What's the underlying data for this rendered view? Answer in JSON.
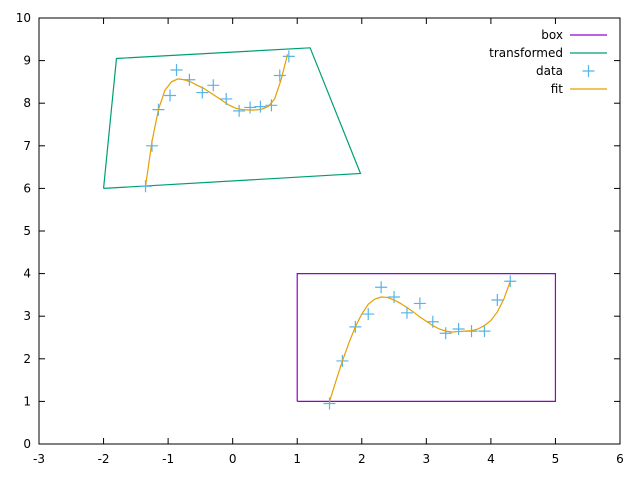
{
  "chart_data": {
    "type": "line",
    "title": "",
    "xlabel": "",
    "ylabel": "",
    "xlim": [
      -3,
      6
    ],
    "ylim": [
      0,
      10
    ],
    "xticks": [
      -3,
      -2,
      -1,
      0,
      1,
      2,
      3,
      4,
      5,
      6
    ],
    "yticks": [
      0,
      1,
      2,
      3,
      4,
      5,
      6,
      7,
      8,
      9,
      10
    ],
    "grid": false,
    "legend_position": "top-right",
    "series": [
      {
        "name": "box",
        "kind": "line",
        "color": "#9400d3",
        "x": [
          1,
          5,
          5,
          1,
          1
        ],
        "y": [
          1,
          1,
          4,
          4,
          1
        ]
      },
      {
        "name": "transformed",
        "kind": "line",
        "color": "#009e73",
        "x": [
          -2.0,
          1.98,
          1.2,
          -1.8,
          -2.0
        ],
        "y": [
          6.0,
          6.35,
          9.3,
          9.05,
          6.0
        ]
      },
      {
        "name": "data",
        "kind": "points",
        "color": "#56b4e9",
        "x": [
          1.5,
          1.7,
          1.9,
          2.1,
          2.3,
          2.5,
          2.7,
          2.9,
          3.1,
          3.3,
          3.5,
          3.7,
          3.9,
          4.1,
          4.3,
          -1.35,
          -1.25,
          -1.15,
          -0.97,
          -0.87,
          -0.67,
          -0.47,
          -0.3,
          -0.1,
          0.1,
          0.27,
          0.43,
          0.6,
          0.73,
          0.87
        ],
        "y": [
          0.95,
          1.95,
          2.75,
          3.05,
          3.68,
          3.45,
          3.08,
          3.3,
          2.87,
          2.6,
          2.7,
          2.65,
          2.65,
          3.38,
          3.82,
          6.05,
          7.0,
          7.85,
          8.18,
          8.78,
          8.55,
          8.25,
          8.42,
          8.1,
          7.82,
          7.9,
          7.92,
          7.95,
          8.65,
          9.1
        ]
      },
      {
        "name": "fit",
        "kind": "line",
        "color": "#e69f00",
        "x": [
          1.5,
          1.6,
          1.7,
          1.8,
          1.9,
          2.0,
          2.1,
          2.2,
          2.3,
          2.4,
          2.5,
          2.6,
          2.7,
          2.8,
          2.9,
          3.0,
          3.1,
          3.2,
          3.3,
          3.4,
          3.5,
          3.6,
          3.7,
          3.8,
          3.9,
          4.0,
          4.1,
          4.2,
          4.3,
          -1.35,
          -1.25,
          -1.15,
          -1.05,
          -0.95,
          -0.85,
          -0.75,
          -0.65,
          -0.55,
          -0.45,
          -0.35,
          -0.25,
          -0.15,
          -0.05,
          0.05,
          0.15,
          0.25,
          0.35,
          0.45,
          0.55,
          0.65,
          0.75,
          0.85
        ],
        "y": [
          1.0,
          1.48,
          1.95,
          2.37,
          2.75,
          3.05,
          3.28,
          3.4,
          3.45,
          3.44,
          3.38,
          3.3,
          3.2,
          3.1,
          2.98,
          2.88,
          2.78,
          2.7,
          2.65,
          2.63,
          2.64,
          2.65,
          2.66,
          2.7,
          2.78,
          2.9,
          3.1,
          3.4,
          3.82,
          6.05,
          7.1,
          7.85,
          8.3,
          8.5,
          8.57,
          8.55,
          8.5,
          8.42,
          8.35,
          8.25,
          8.15,
          8.05,
          7.95,
          7.88,
          7.85,
          7.84,
          7.84,
          7.86,
          7.92,
          8.1,
          8.55,
          9.15
        ]
      }
    ]
  }
}
